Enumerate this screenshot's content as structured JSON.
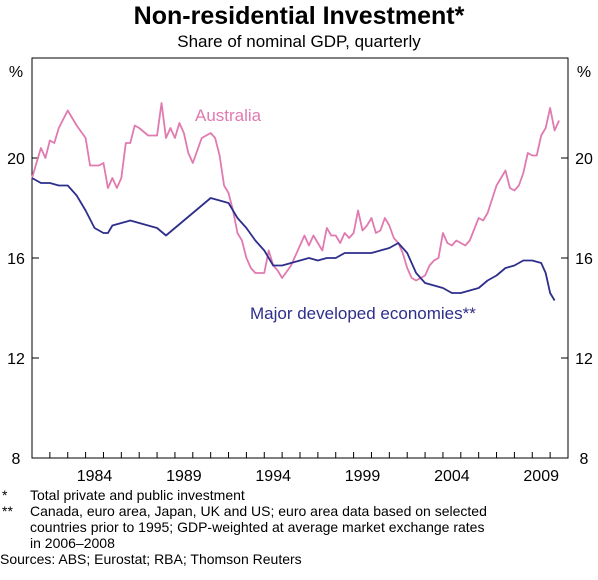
{
  "header": {
    "title": "Non-residential Investment*",
    "subtitle": "Share of nominal GDP, quarterly"
  },
  "chart_data": {
    "type": "line",
    "title": "Non-residential Investment*",
    "subtitle": "Share of nominal GDP, quarterly",
    "y_unit_left": "%",
    "y_unit_right": "%",
    "ylim": [
      8,
      24
    ],
    "yticks": [
      8,
      12,
      16,
      20
    ],
    "xlim": [
      1980.0,
      2010.0
    ],
    "xticks": [
      "1984",
      "1989",
      "1994",
      "1999",
      "2004",
      "2009"
    ],
    "grid": false,
    "colors": {
      "Australia": "#e07ab0",
      "Major developed economies**": "#2e2e8c"
    },
    "series": [
      {
        "name": "Australia",
        "label": "Australia",
        "points": [
          [
            1980.0,
            19.2
          ],
          [
            1980.5,
            20.4
          ],
          [
            1980.75,
            20.0
          ],
          [
            1981.0,
            20.7
          ],
          [
            1981.25,
            20.6
          ],
          [
            1981.5,
            21.2
          ],
          [
            1982.0,
            21.9
          ],
          [
            1982.5,
            21.3
          ],
          [
            1983.0,
            20.8
          ],
          [
            1983.25,
            19.7
          ],
          [
            1983.75,
            19.7
          ],
          [
            1984.0,
            19.8
          ],
          [
            1984.25,
            18.8
          ],
          [
            1984.5,
            19.2
          ],
          [
            1984.75,
            18.8
          ],
          [
            1985.0,
            19.2
          ],
          [
            1985.25,
            20.6
          ],
          [
            1985.5,
            20.6
          ],
          [
            1985.75,
            21.3
          ],
          [
            1986.0,
            21.2
          ],
          [
            1986.5,
            20.9
          ],
          [
            1987.0,
            20.9
          ],
          [
            1987.25,
            22.2
          ],
          [
            1987.5,
            20.8
          ],
          [
            1987.75,
            21.2
          ],
          [
            1988.0,
            20.8
          ],
          [
            1988.25,
            21.4
          ],
          [
            1988.5,
            21.0
          ],
          [
            1988.75,
            20.2
          ],
          [
            1989.0,
            19.8
          ],
          [
            1989.25,
            20.3
          ],
          [
            1989.5,
            20.8
          ],
          [
            1990.0,
            21.0
          ],
          [
            1990.25,
            20.8
          ],
          [
            1990.5,
            20.1
          ],
          [
            1990.75,
            18.9
          ],
          [
            1991.0,
            18.6
          ],
          [
            1991.25,
            17.9
          ],
          [
            1991.5,
            17.0
          ],
          [
            1991.75,
            16.7
          ],
          [
            1992.0,
            16.0
          ],
          [
            1992.25,
            15.6
          ],
          [
            1992.5,
            15.4
          ],
          [
            1993.0,
            15.4
          ],
          [
            1993.25,
            16.3
          ],
          [
            1993.5,
            15.7
          ],
          [
            1993.75,
            15.5
          ],
          [
            1994.0,
            15.2
          ],
          [
            1994.5,
            15.7
          ],
          [
            1995.0,
            16.5
          ],
          [
            1995.25,
            16.9
          ],
          [
            1995.5,
            16.5
          ],
          [
            1995.75,
            16.9
          ],
          [
            1996.0,
            16.6
          ],
          [
            1996.25,
            16.3
          ],
          [
            1996.5,
            17.2
          ],
          [
            1996.75,
            16.9
          ],
          [
            1997.0,
            16.9
          ],
          [
            1997.25,
            16.6
          ],
          [
            1997.5,
            17.0
          ],
          [
            1997.75,
            16.8
          ],
          [
            1998.0,
            17.0
          ],
          [
            1998.25,
            17.9
          ],
          [
            1998.5,
            17.1
          ],
          [
            1998.75,
            17.3
          ],
          [
            1999.0,
            17.6
          ],
          [
            1999.25,
            17.0
          ],
          [
            1999.5,
            17.1
          ],
          [
            1999.75,
            17.6
          ],
          [
            2000.0,
            17.3
          ],
          [
            2000.25,
            16.8
          ],
          [
            2000.5,
            16.6
          ],
          [
            2000.75,
            16.2
          ],
          [
            2001.0,
            15.6
          ],
          [
            2001.25,
            15.2
          ],
          [
            2001.5,
            15.1
          ],
          [
            2002.0,
            15.3
          ],
          [
            2002.25,
            15.7
          ],
          [
            2002.5,
            15.9
          ],
          [
            2002.75,
            16.0
          ],
          [
            2003.0,
            17.0
          ],
          [
            2003.25,
            16.6
          ],
          [
            2003.5,
            16.5
          ],
          [
            2003.75,
            16.7
          ],
          [
            2004.0,
            16.6
          ],
          [
            2004.25,
            16.5
          ],
          [
            2004.5,
            16.7
          ],
          [
            2005.0,
            17.6
          ],
          [
            2005.25,
            17.5
          ],
          [
            2005.5,
            17.8
          ],
          [
            2006.0,
            18.9
          ],
          [
            2006.5,
            19.5
          ],
          [
            2006.75,
            18.8
          ],
          [
            2007.0,
            18.7
          ],
          [
            2007.25,
            18.9
          ],
          [
            2007.5,
            19.4
          ],
          [
            2007.75,
            20.2
          ],
          [
            2008.0,
            20.1
          ],
          [
            2008.25,
            20.1
          ],
          [
            2008.5,
            20.9
          ],
          [
            2008.75,
            21.2
          ],
          [
            2009.0,
            22.0
          ],
          [
            2009.25,
            21.1
          ],
          [
            2009.5,
            21.5
          ]
        ]
      },
      {
        "name": "Major developed economies**",
        "label": "Major developed economies**",
        "points": [
          [
            1980.0,
            19.2
          ],
          [
            1980.25,
            19.1
          ],
          [
            1980.5,
            19.0
          ],
          [
            1981.0,
            19.0
          ],
          [
            1981.5,
            18.9
          ],
          [
            1982.0,
            18.9
          ],
          [
            1982.5,
            18.5
          ],
          [
            1983.0,
            17.9
          ],
          [
            1983.5,
            17.2
          ],
          [
            1984.0,
            17.0
          ],
          [
            1984.25,
            17.0
          ],
          [
            1984.5,
            17.3
          ],
          [
            1985.0,
            17.4
          ],
          [
            1985.5,
            17.5
          ],
          [
            1986.0,
            17.4
          ],
          [
            1986.5,
            17.3
          ],
          [
            1987.0,
            17.2
          ],
          [
            1987.5,
            16.9
          ],
          [
            1988.0,
            17.2
          ],
          [
            1988.5,
            17.5
          ],
          [
            1989.0,
            17.8
          ],
          [
            1989.5,
            18.1
          ],
          [
            1990.0,
            18.4
          ],
          [
            1990.5,
            18.3
          ],
          [
            1991.0,
            18.2
          ],
          [
            1991.5,
            17.6
          ],
          [
            1992.0,
            17.2
          ],
          [
            1992.5,
            16.7
          ],
          [
            1993.0,
            16.3
          ],
          [
            1993.5,
            15.7
          ],
          [
            1994.0,
            15.7
          ],
          [
            1994.5,
            15.8
          ],
          [
            1995.0,
            15.9
          ],
          [
            1995.5,
            16.0
          ],
          [
            1996.0,
            15.9
          ],
          [
            1996.5,
            16.0
          ],
          [
            1997.0,
            16.0
          ],
          [
            1997.5,
            16.2
          ],
          [
            1998.0,
            16.2
          ],
          [
            1998.5,
            16.2
          ],
          [
            1999.0,
            16.2
          ],
          [
            1999.5,
            16.3
          ],
          [
            2000.0,
            16.4
          ],
          [
            2000.5,
            16.6
          ],
          [
            2001.0,
            16.2
          ],
          [
            2001.5,
            15.4
          ],
          [
            2002.0,
            15.0
          ],
          [
            2002.5,
            14.9
          ],
          [
            2003.0,
            14.8
          ],
          [
            2003.5,
            14.6
          ],
          [
            2004.0,
            14.6
          ],
          [
            2004.5,
            14.7
          ],
          [
            2005.0,
            14.8
          ],
          [
            2005.5,
            15.1
          ],
          [
            2006.0,
            15.3
          ],
          [
            2006.5,
            15.6
          ],
          [
            2007.0,
            15.7
          ],
          [
            2007.5,
            15.9
          ],
          [
            2008.0,
            15.9
          ],
          [
            2008.5,
            15.8
          ],
          [
            2008.75,
            15.4
          ],
          [
            2009.0,
            14.6
          ],
          [
            2009.25,
            14.3
          ]
        ]
      }
    ]
  },
  "footnotes": {
    "star": {
      "mark": "*",
      "text": "Total private and public investment"
    },
    "double_star": {
      "mark": "**",
      "lines": [
        "Canada, euro area, Japan, UK and US; euro area data based on selected",
        "countries prior to 1995; GDP-weighted at average market exchange rates",
        "in 2006–2008"
      ]
    },
    "sources": "Sources: ABS; Eurostat; RBA; Thomson Reuters"
  }
}
